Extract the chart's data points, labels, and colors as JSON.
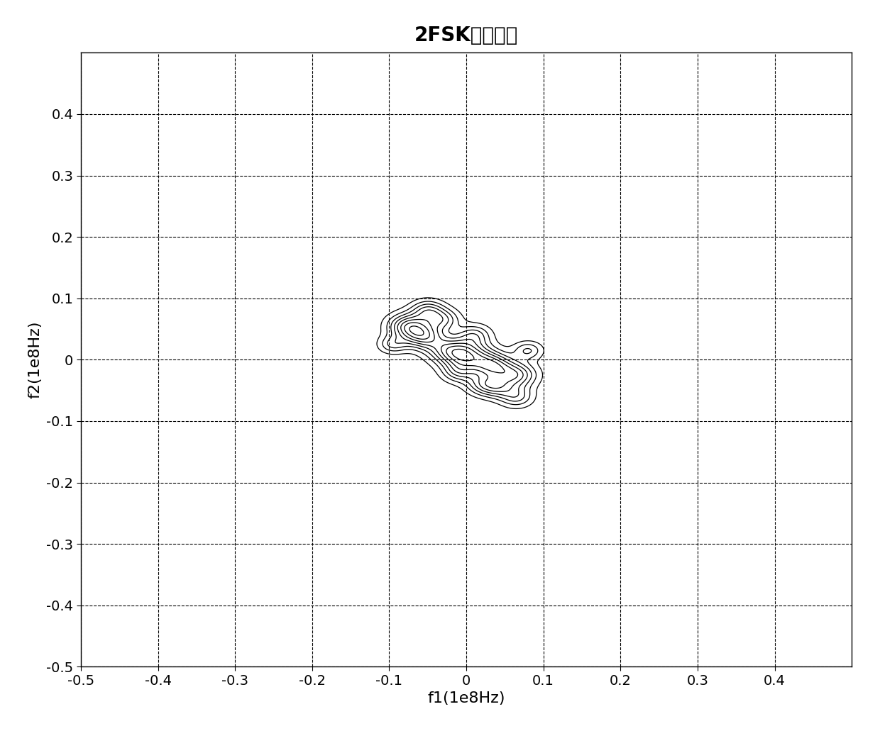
{
  "title": "2FSK信号双谱",
  "xlabel": "f1(1e8Hz)",
  "ylabel": "f2(1e8Hz)",
  "xlim": [
    -0.5,
    0.5
  ],
  "ylim": [
    -0.5,
    0.5
  ],
  "xticks": [
    -0.5,
    -0.4,
    -0.3,
    -0.2,
    -0.1,
    0,
    0.1,
    0.2,
    0.3,
    0.4
  ],
  "yticks": [
    -0.5,
    -0.4,
    -0.3,
    -0.2,
    -0.1,
    0,
    0.1,
    0.2,
    0.3,
    0.4
  ],
  "grid_color": "#000000",
  "contour_color": "#000000",
  "background_color": "#ffffff",
  "title_fontsize": 20,
  "label_fontsize": 16,
  "tick_fontsize": 14,
  "n_contours": 8,
  "peaks": [
    [
      -0.075,
      0.055,
      0.018,
      0.014,
      1.0
    ],
    [
      -0.055,
      0.038,
      0.018,
      0.014,
      0.95
    ],
    [
      -0.02,
      0.015,
      0.02,
      0.015,
      0.85
    ],
    [
      0.005,
      0.005,
      0.022,
      0.016,
      0.9
    ],
    [
      0.035,
      -0.01,
      0.018,
      0.014,
      0.9
    ],
    [
      0.065,
      -0.025,
      0.018,
      0.014,
      0.85
    ],
    [
      -0.05,
      0.08,
      0.015,
      0.012,
      0.65
    ],
    [
      -0.03,
      0.065,
      0.015,
      0.012,
      0.6
    ],
    [
      0.01,
      0.04,
      0.015,
      0.012,
      0.55
    ],
    [
      0.04,
      -0.045,
      0.015,
      0.012,
      0.6
    ],
    [
      0.065,
      -0.06,
      0.015,
      0.012,
      0.55
    ],
    [
      -0.095,
      0.025,
      0.013,
      0.01,
      0.5
    ],
    [
      0.08,
      0.015,
      0.013,
      0.01,
      0.5
    ],
    [
      -0.01,
      -0.02,
      0.015,
      0.012,
      0.55
    ],
    [
      0.02,
      -0.04,
      0.015,
      0.012,
      0.55
    ]
  ]
}
